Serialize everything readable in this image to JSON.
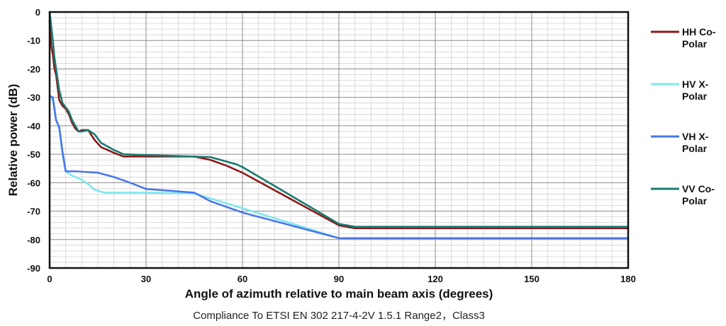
{
  "chart_data": {
    "type": "line",
    "xlabel": "Angle of azimuth relative to main beam axis (degrees)",
    "ylabel": "Relative power (dB)",
    "caption": "Compliance To ETSI EN 302 217-4-2V 1.5.1 Range2，Class3",
    "xlim": [
      0,
      180
    ],
    "ylim": [
      -90,
      0
    ],
    "xticks": [
      0,
      30,
      60,
      90,
      120,
      150,
      180
    ],
    "yticks": [
      0,
      -10,
      -20,
      -30,
      -40,
      -50,
      -60,
      -70,
      -80,
      -90
    ],
    "grid": true,
    "legend_position": "right",
    "series": [
      {
        "name_lines": [
          "HH Co-",
          "Polar"
        ],
        "color": "#8b1a1a",
        "points": [
          [
            0,
            -3
          ],
          [
            0.5,
            -12
          ],
          [
            1,
            -15
          ],
          [
            1.5,
            -20
          ],
          [
            2,
            -22
          ],
          [
            3,
            -31
          ],
          [
            4,
            -33
          ],
          [
            5,
            -34
          ],
          [
            6,
            -36
          ],
          [
            7,
            -39
          ],
          [
            8,
            -41
          ],
          [
            9,
            -42
          ],
          [
            10,
            -41.5
          ],
          [
            12,
            -41.5
          ],
          [
            14,
            -45
          ],
          [
            16,
            -47.5
          ],
          [
            20,
            -49.5
          ],
          [
            23,
            -50.8
          ],
          [
            30,
            -50.8
          ],
          [
            45,
            -50.8
          ],
          [
            50,
            -52
          ],
          [
            55,
            -54
          ],
          [
            60,
            -56.5
          ],
          [
            90,
            -75
          ],
          [
            95,
            -76
          ],
          [
            180,
            -76
          ]
        ]
      },
      {
        "name_lines": [
          "HV X-",
          "Polar"
        ],
        "color": "#7fe6ef",
        "points": [
          [
            0,
            -30
          ],
          [
            1,
            -31
          ],
          [
            2,
            -38
          ],
          [
            3,
            -41
          ],
          [
            4,
            -50
          ],
          [
            5,
            -56
          ],
          [
            7,
            -57.5
          ],
          [
            10,
            -59
          ],
          [
            12,
            -60.5
          ],
          [
            14,
            -62.5
          ],
          [
            17,
            -63.5
          ],
          [
            30,
            -63.5
          ],
          [
            45,
            -63.8
          ],
          [
            50,
            -65.5
          ],
          [
            60,
            -69
          ],
          [
            90,
            -79.5
          ],
          [
            180,
            -79.5
          ]
        ]
      },
      {
        "name_lines": [
          "VH X-",
          "Polar"
        ],
        "color": "#4a76e8",
        "points": [
          [
            0,
            -29.5
          ],
          [
            1,
            -30
          ],
          [
            2,
            -38
          ],
          [
            3,
            -40.5
          ],
          [
            4,
            -49
          ],
          [
            5,
            -56
          ],
          [
            8,
            -56
          ],
          [
            15,
            -56.5
          ],
          [
            20,
            -58
          ],
          [
            25,
            -60
          ],
          [
            30,
            -62.2
          ],
          [
            45,
            -63.5
          ],
          [
            50,
            -66.5
          ],
          [
            60,
            -70.5
          ],
          [
            90,
            -79.5
          ],
          [
            180,
            -79.5
          ]
        ]
      },
      {
        "name_lines": [
          "VV Co-",
          "Polar"
        ],
        "color": "#197a70",
        "points": [
          [
            0,
            0
          ],
          [
            0.5,
            -5
          ],
          [
            1,
            -10
          ],
          [
            1.5,
            -16
          ],
          [
            2,
            -20
          ],
          [
            3,
            -27.5
          ],
          [
            4,
            -32
          ],
          [
            5,
            -33.5
          ],
          [
            6,
            -35
          ],
          [
            7,
            -38
          ],
          [
            8,
            -40
          ],
          [
            9,
            -42
          ],
          [
            10,
            -42
          ],
          [
            12,
            -41.5
          ],
          [
            14,
            -43
          ],
          [
            16,
            -46
          ],
          [
            20,
            -48.5
          ],
          [
            23,
            -50
          ],
          [
            30,
            -50.3
          ],
          [
            50,
            -51
          ],
          [
            58,
            -53.5
          ],
          [
            60,
            -54.5
          ],
          [
            90,
            -74.5
          ],
          [
            95,
            -75.5
          ],
          [
            180,
            -75.5
          ]
        ]
      }
    ]
  }
}
